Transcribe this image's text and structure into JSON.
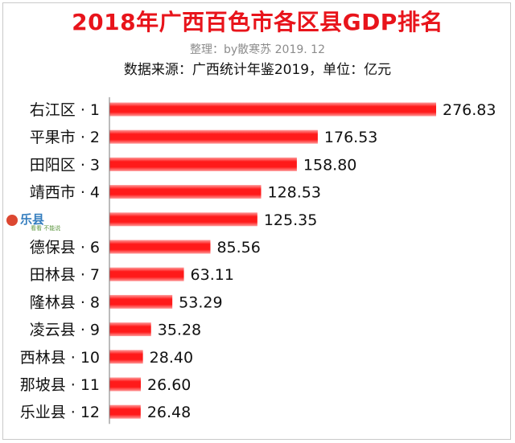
{
  "header": {
    "title": "2018年广西百色市各区县GDP排名",
    "subtitle": "整理：by散寒苏 2019. 12",
    "source": "数据来源：广西统计年鉴2019，单位：亿元"
  },
  "watermark": {
    "text": "乐县",
    "sub": "看看 不能说"
  },
  "chart_data": {
    "type": "bar",
    "orientation": "horizontal",
    "title": "2018年广西百色市各区县GDP排名",
    "unit": "亿元",
    "bar_color": "#ff1a1a",
    "axis_color": "#7a7a7a",
    "categories": [
      "右江区 · 1",
      "平果市 · 2",
      "田阳区 · 3",
      "靖西市 · 4",
      "德保县 · 6",
      "田林县 · 7",
      "隆林县 · 8",
      "凌云县 · 9",
      "西林县 · 10",
      "那坡县 · 11",
      "乐业县 · 12"
    ],
    "series": [
      {
        "values": [
          276.83,
          176.53,
          158.8,
          128.53,
          85.56,
          63.11,
          53.29,
          35.28,
          28.4,
          26.6,
          26.48
        ],
        "labels": [
          "276.83",
          "176.53",
          "158.80",
          "128.53",
          "85.56",
          "63.11",
          "53.29",
          "35.28",
          "28.40",
          "26.60",
          "26.48"
        ]
      }
    ],
    "hidden_row": {
      "label": "",
      "value": 125.35,
      "value_label": "125.35",
      "position": 5
    },
    "xlim": [
      0,
      276.83
    ]
  }
}
